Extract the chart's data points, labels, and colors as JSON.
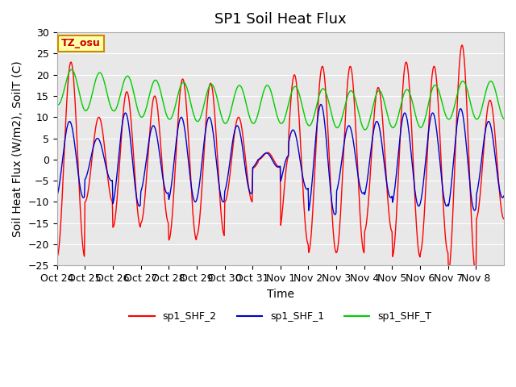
{
  "title": "SP1 Soil Heat Flux",
  "ylabel": "Soil Heat Flux (W/m2), SoilT (C)",
  "xlabel": "Time",
  "ylim": [
    -25,
    30
  ],
  "yticks": [
    -25,
    -20,
    -15,
    -10,
    -5,
    0,
    5,
    10,
    15,
    20,
    25,
    30
  ],
  "xtick_labels": [
    "Oct 24",
    "Oct 25",
    "Oct 26",
    "Oct 27",
    "Oct 28",
    "Oct 29",
    "Oct 30",
    "Oct 31",
    "Nov 1",
    "Nov 2",
    "Nov 3",
    "Nov 4",
    "Nov 5",
    "Nov 6",
    "Nov 7",
    "Nov 8"
  ],
  "bg_color": "#e8e8e8",
  "outer_bg": "#ffffff",
  "line_colors": {
    "SHF2": "#ff0000",
    "SHF1": "#0000cc",
    "SHFT": "#00cc00"
  },
  "legend_labels": [
    "sp1_SHF_2",
    "sp1_SHF_1",
    "sp1_SHF_T"
  ],
  "tz_label": "TZ_osu",
  "tz_bg": "#ffffaa",
  "tz_fg": "#cc0000",
  "title_fontsize": 13,
  "label_fontsize": 10,
  "tick_fontsize": 9
}
